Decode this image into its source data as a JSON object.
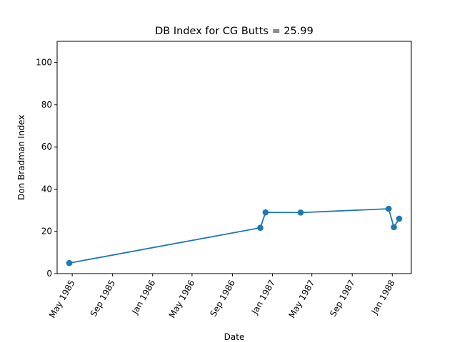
{
  "chart_data": {
    "type": "line",
    "title": "DB Index for CG Butts = 25.99",
    "xlabel": "Date",
    "ylabel": "Don Bradman Index",
    "series_color": "#1f77b4",
    "xlim": [
      "1985-03-16",
      "1988-02-28"
    ],
    "ylim": [
      0,
      110
    ],
    "x_ticks": [
      {
        "date": "1985-05-01",
        "label": "May 1985"
      },
      {
        "date": "1985-09-01",
        "label": "Sep 1985"
      },
      {
        "date": "1986-01-01",
        "label": "Jan 1986"
      },
      {
        "date": "1986-05-01",
        "label": "May 1986"
      },
      {
        "date": "1986-09-01",
        "label": "Sep 1986"
      },
      {
        "date": "1987-01-01",
        "label": "Jan 1987"
      },
      {
        "date": "1987-05-01",
        "label": "May 1987"
      },
      {
        "date": "1987-09-01",
        "label": "Sep 1987"
      },
      {
        "date": "1988-01-01",
        "label": "Jan 1988"
      }
    ],
    "y_ticks": [
      0,
      20,
      40,
      60,
      80,
      100
    ],
    "grid": false,
    "legend": "none",
    "points": [
      {
        "x": "1985-04-22",
        "y": 5.0
      },
      {
        "x": "1986-11-25",
        "y": 21.7
      },
      {
        "x": "1986-12-11",
        "y": 29.0
      },
      {
        "x": "1987-03-28",
        "y": 28.9
      },
      {
        "x": "1987-12-21",
        "y": 30.7
      },
      {
        "x": "1988-01-06",
        "y": 22.0
      },
      {
        "x": "1988-01-22",
        "y": 25.99
      }
    ]
  }
}
